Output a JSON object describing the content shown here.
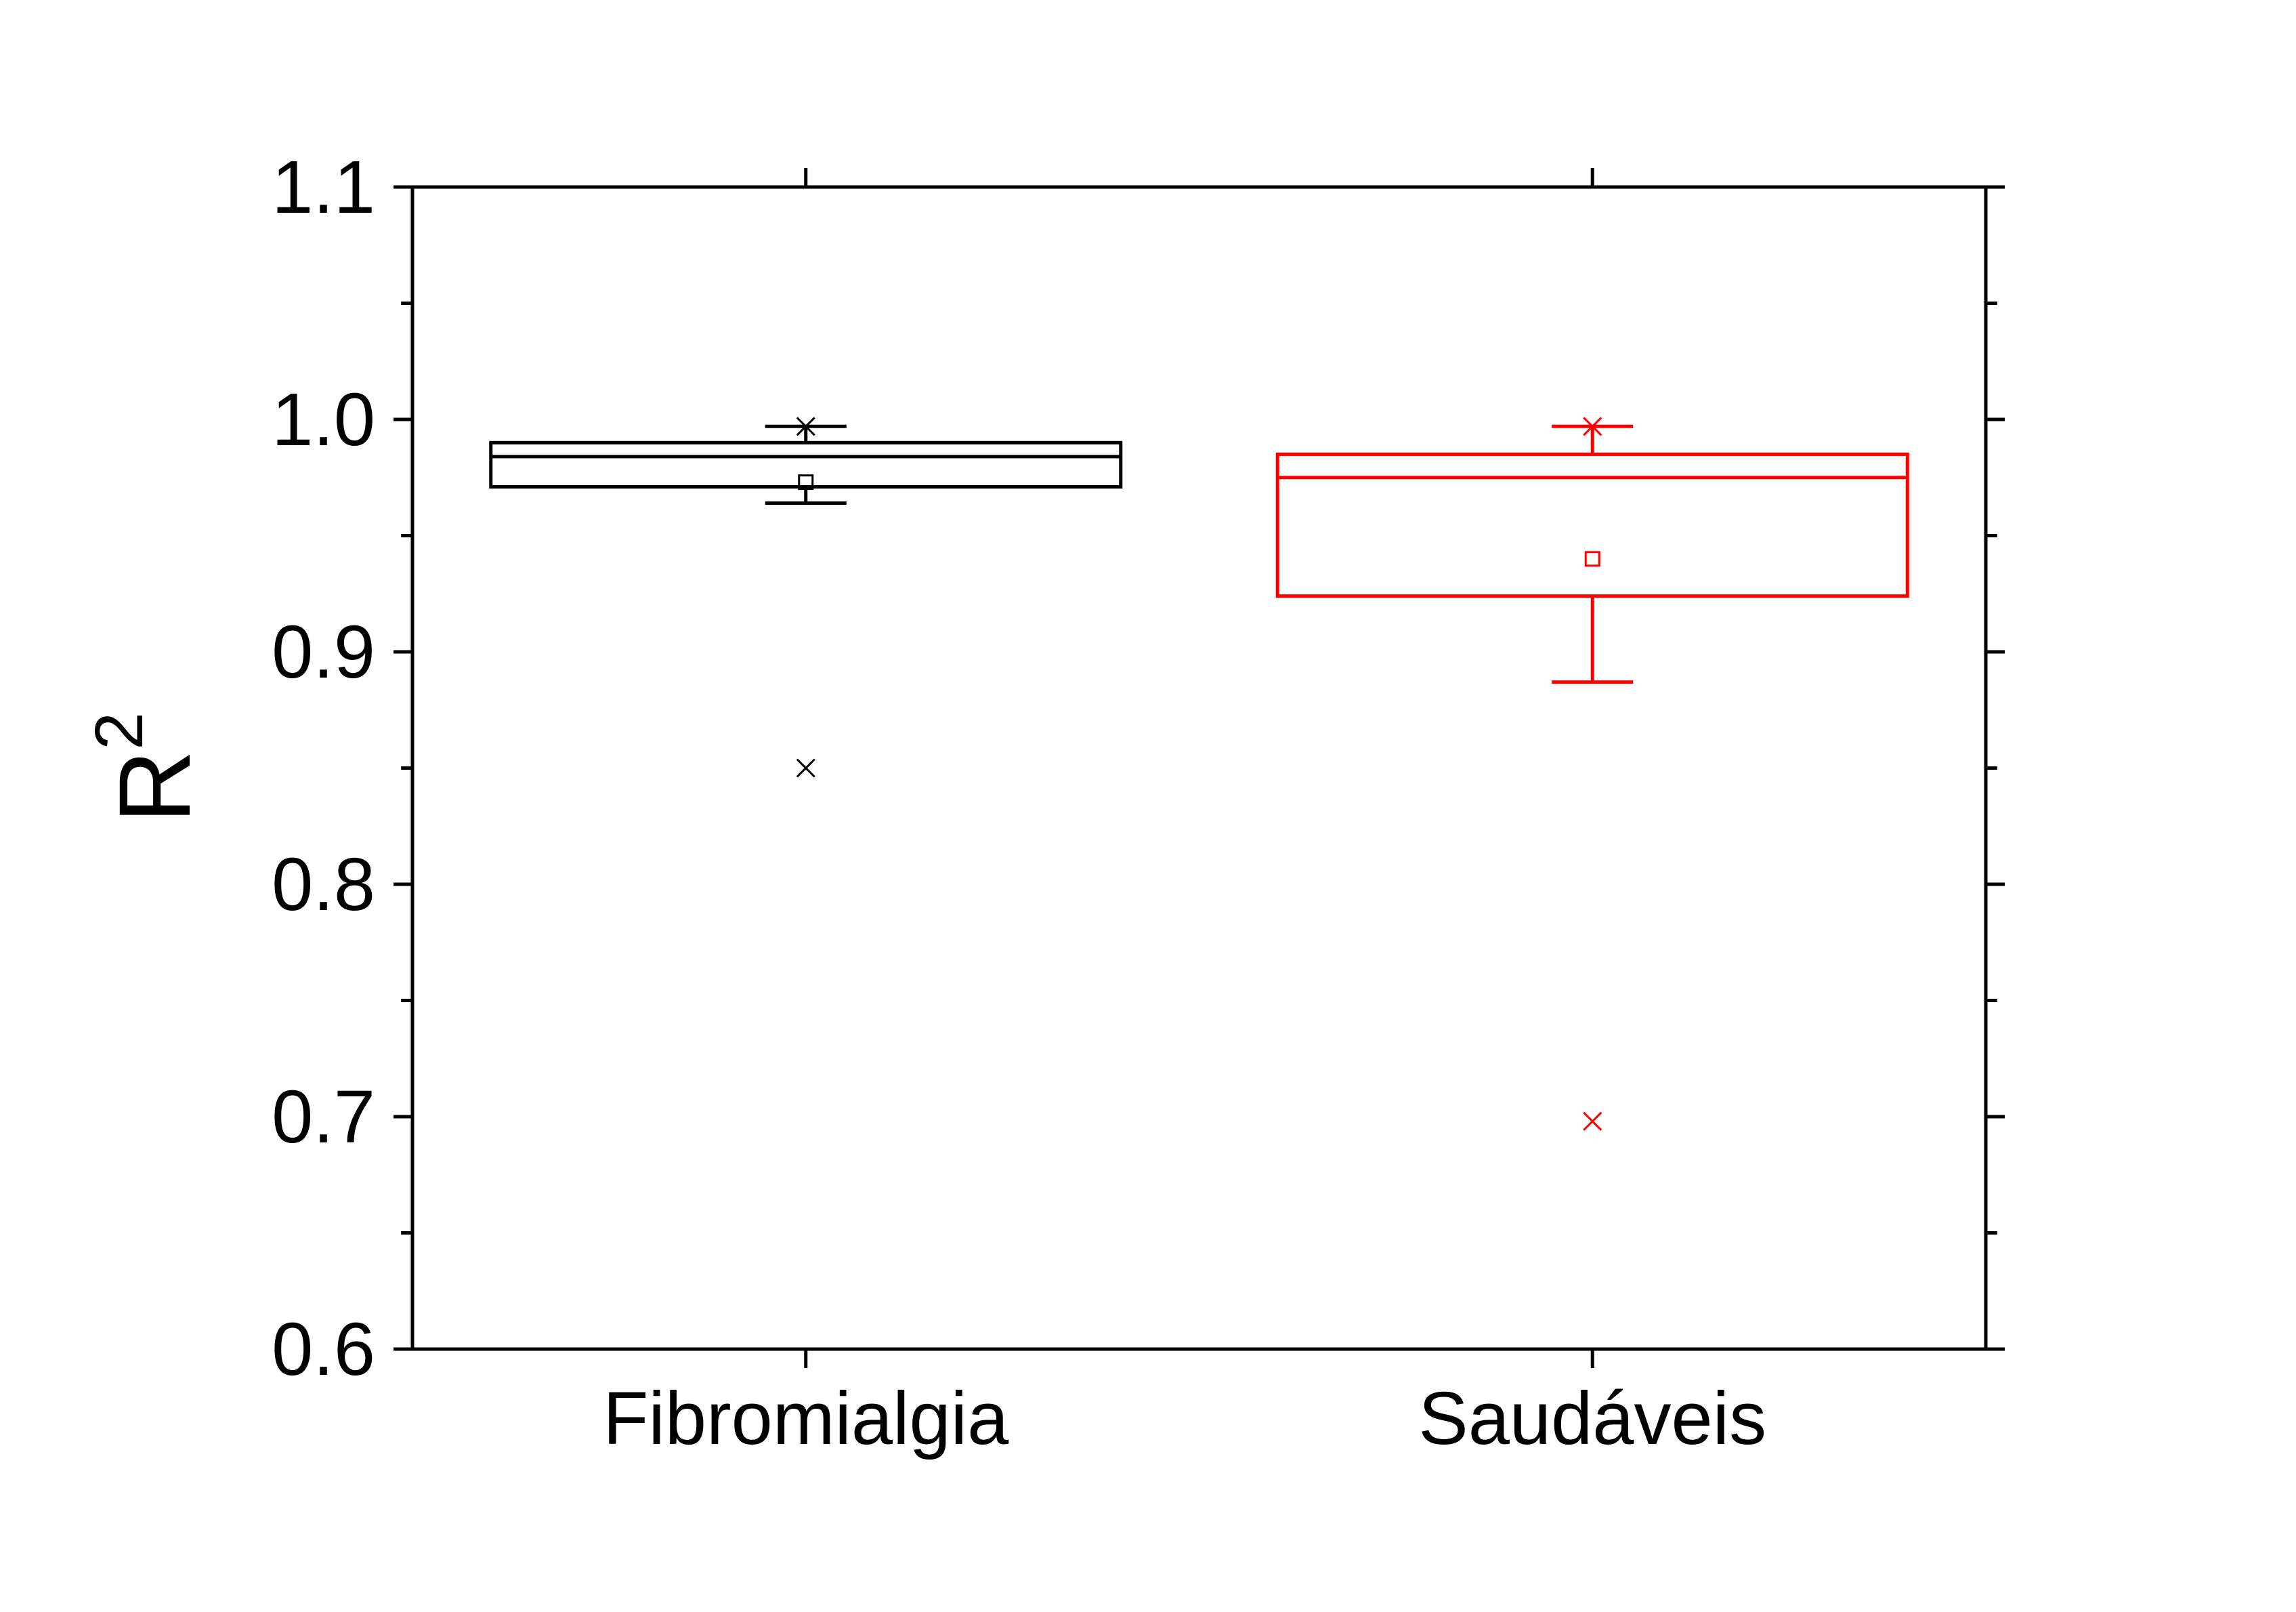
{
  "chart_data": {
    "type": "box",
    "title": "",
    "xlabel": "",
    "ylabel": "R",
    "ylabel_superscript": "2",
    "ylim": [
      0.6,
      1.1
    ],
    "yticks": [
      "0.6",
      "0.7",
      "0.8",
      "0.9",
      "1.0",
      "1.1"
    ],
    "grid": false,
    "categories": [
      "Fibromialgia",
      "Saudáveis"
    ],
    "series": [
      {
        "category": "Fibromialgia",
        "color": "#000000",
        "q1": 0.971,
        "median": 0.984,
        "q3": 0.99,
        "whisker_low": 0.964,
        "whisker_high": 0.997,
        "mean": 0.973,
        "extremes": [
          0.997,
          0.85
        ]
      },
      {
        "category": "Saudáveis",
        "color": "#ff0000",
        "q1": 0.924,
        "median": 0.975,
        "q3": 0.985,
        "whisker_low": 0.887,
        "whisker_high": 0.997,
        "mean": 0.94,
        "extremes": [
          0.997,
          0.698
        ]
      }
    ]
  }
}
